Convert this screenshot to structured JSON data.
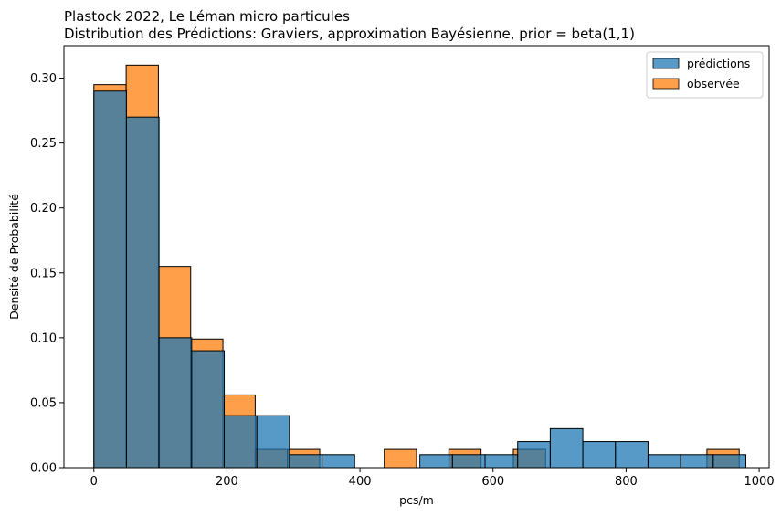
{
  "chart_data": {
    "type": "histogram",
    "title": "Plastock 2022, Le Léman micro particules",
    "subtitle": "Distribution des Prédictions: Graviers,  approximation Bayésienne, prior = beta(1,1)",
    "xlabel": "pcs/m",
    "ylabel": "Densité de Probabilité",
    "xlim": [
      -45,
      1015
    ],
    "ylim": [
      0,
      0.325
    ],
    "xticks": [
      0,
      200,
      400,
      600,
      800,
      1000
    ],
    "yticks": [
      "0.00",
      "0.05",
      "0.10",
      "0.15",
      "0.20",
      "0.25",
      "0.30"
    ],
    "grid": false,
    "legend_position": "top-right",
    "series": [
      {
        "name": "observée",
        "color": "#ff7f0e",
        "bins": [
          {
            "x0": 0,
            "x1": 48.5,
            "value": 0.295
          },
          {
            "x0": 48.5,
            "x1": 97,
            "value": 0.31
          },
          {
            "x0": 97,
            "x1": 145.5,
            "value": 0.155
          },
          {
            "x0": 145.5,
            "x1": 194,
            "value": 0.099
          },
          {
            "x0": 194,
            "x1": 242.5,
            "value": 0.056
          },
          {
            "x0": 242.5,
            "x1": 291,
            "value": 0.014
          },
          {
            "x0": 291,
            "x1": 339.5,
            "value": 0.014
          },
          {
            "x0": 339.5,
            "x1": 388,
            "value": 0
          },
          {
            "x0": 388,
            "x1": 436.5,
            "value": 0
          },
          {
            "x0": 436.5,
            "x1": 485,
            "value": 0.014
          },
          {
            "x0": 485,
            "x1": 533.5,
            "value": 0
          },
          {
            "x0": 533.5,
            "x1": 582,
            "value": 0.014
          },
          {
            "x0": 582,
            "x1": 630.5,
            "value": 0
          },
          {
            "x0": 630.5,
            "x1": 679,
            "value": 0.014
          },
          {
            "x0": 679,
            "x1": 727.5,
            "value": 0
          },
          {
            "x0": 727.5,
            "x1": 776,
            "value": 0
          },
          {
            "x0": 776,
            "x1": 824.5,
            "value": 0
          },
          {
            "x0": 824.5,
            "x1": 873,
            "value": 0
          },
          {
            "x0": 873,
            "x1": 921.5,
            "value": 0
          },
          {
            "x0": 921.5,
            "x1": 970,
            "value": 0.014
          }
        ]
      },
      {
        "name": "prédictions",
        "color": "#1f77b4",
        "bins": [
          {
            "x0": 0,
            "x1": 49,
            "value": 0.29
          },
          {
            "x0": 49,
            "x1": 98,
            "value": 0.27
          },
          {
            "x0": 98,
            "x1": 147,
            "value": 0.1
          },
          {
            "x0": 147,
            "x1": 196,
            "value": 0.09
          },
          {
            "x0": 196,
            "x1": 245,
            "value": 0.04
          },
          {
            "x0": 245,
            "x1": 294,
            "value": 0.04
          },
          {
            "x0": 294,
            "x1": 343,
            "value": 0.01
          },
          {
            "x0": 343,
            "x1": 392,
            "value": 0.01
          },
          {
            "x0": 392,
            "x1": 441,
            "value": 0
          },
          {
            "x0": 441,
            "x1": 490,
            "value": 0
          },
          {
            "x0": 490,
            "x1": 539,
            "value": 0.01
          },
          {
            "x0": 539,
            "x1": 588,
            "value": 0.01
          },
          {
            "x0": 588,
            "x1": 637,
            "value": 0.01
          },
          {
            "x0": 637,
            "x1": 686,
            "value": 0.02
          },
          {
            "x0": 686,
            "x1": 735,
            "value": 0.03
          },
          {
            "x0": 735,
            "x1": 784,
            "value": 0.02
          },
          {
            "x0": 784,
            "x1": 833,
            "value": 0.02
          },
          {
            "x0": 833,
            "x1": 882,
            "value": 0.01
          },
          {
            "x0": 882,
            "x1": 931,
            "value": 0.01
          },
          {
            "x0": 931,
            "x1": 980,
            "value": 0.01
          }
        ]
      }
    ]
  }
}
